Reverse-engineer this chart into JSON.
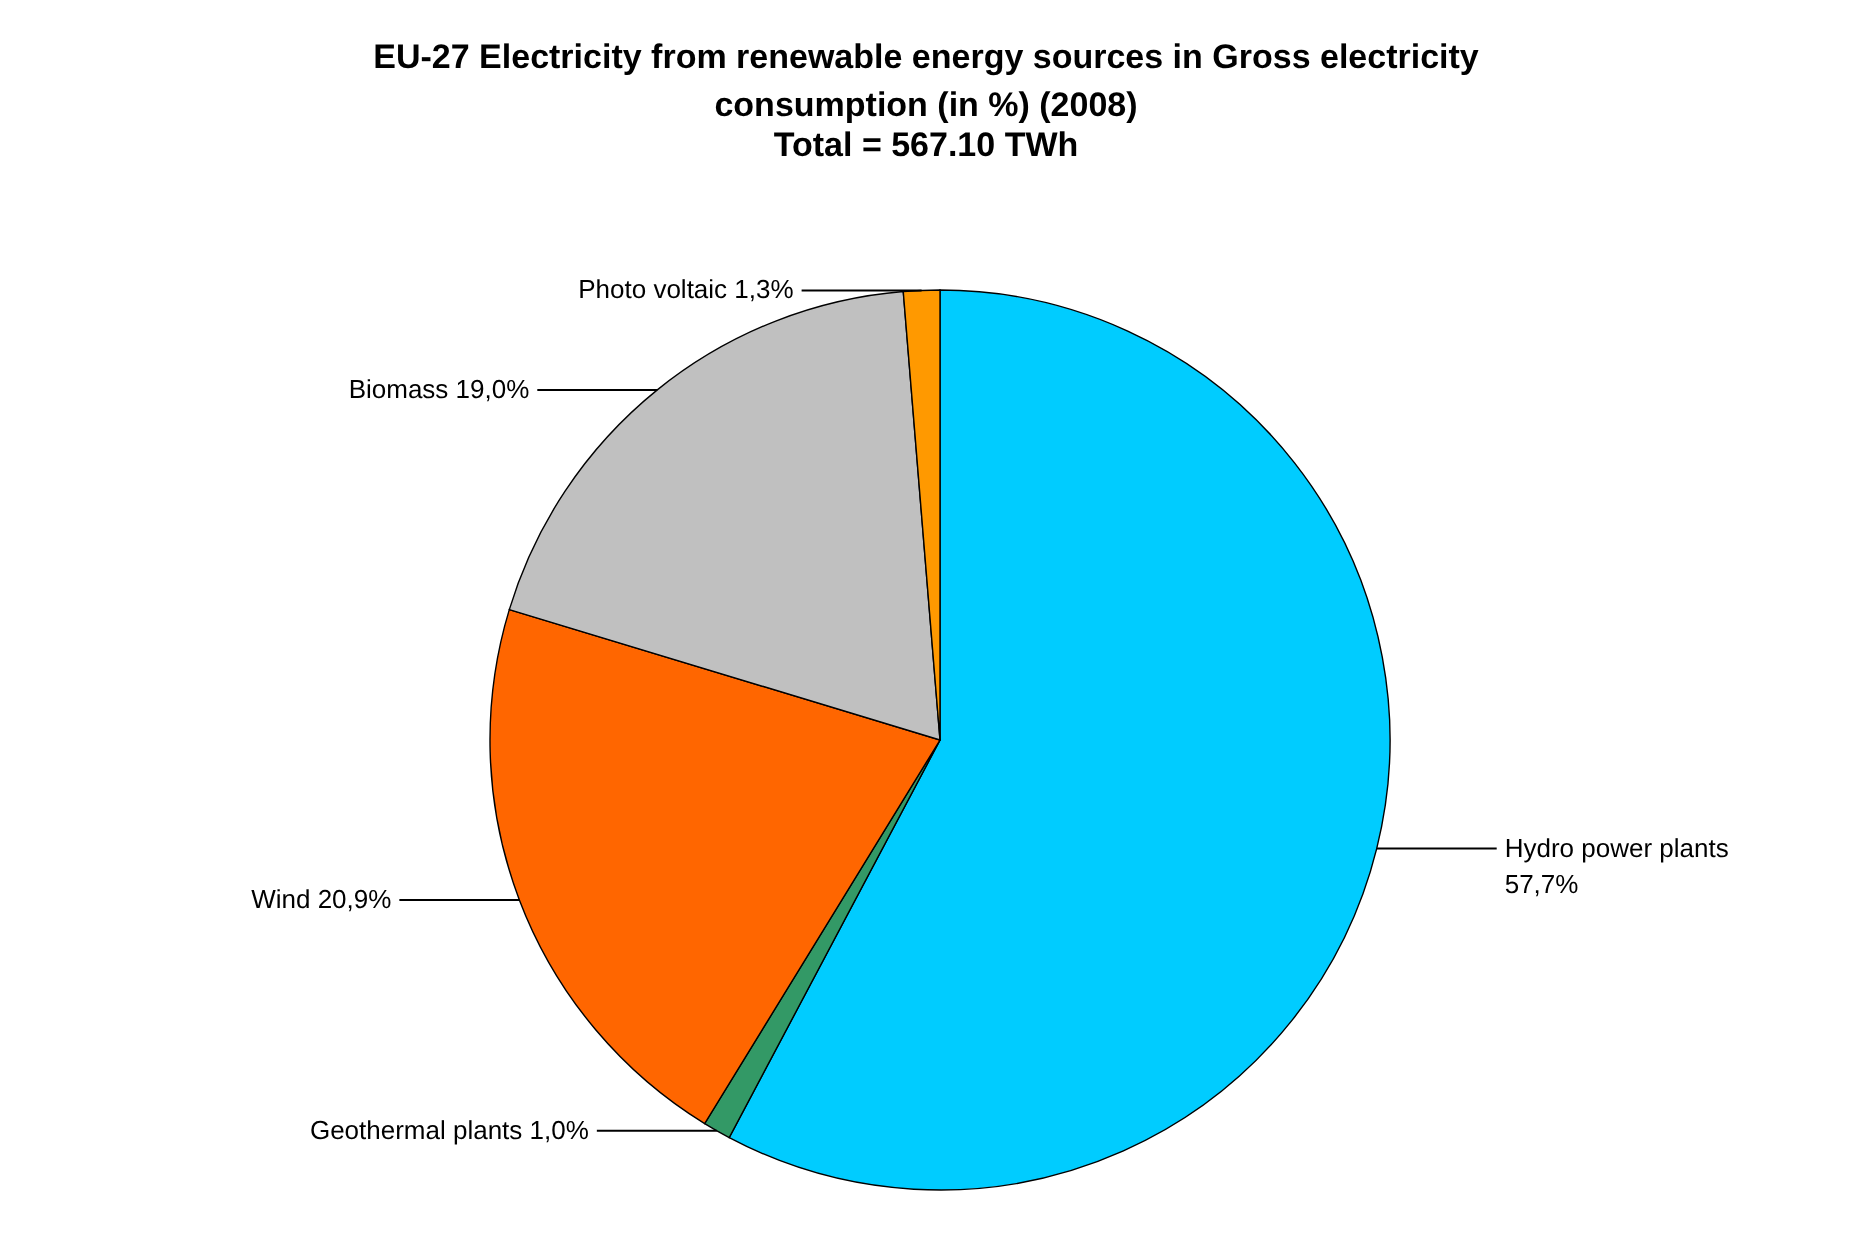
{
  "chart_data": {
    "type": "pie",
    "title": "EU-27 Electricity from renewable energy sources in Gross electricity consumption (in %) (2008)",
    "subtitle": "Total = 567.10 TWh",
    "categories": [
      "Hydro power plants",
      "Geothermal plants",
      "Wind",
      "Biomass",
      "Photo voltaic"
    ],
    "values": [
      57.7,
      1.0,
      20.9,
      19.0,
      1.3
    ],
    "value_labels": [
      "57,7%",
      "1,0%",
      "20,9%",
      "19,0%",
      "1,3%"
    ],
    "colors": [
      "#00ccff",
      "#339966",
      "#ff6600",
      "#c0c0c0",
      "#ff9900"
    ]
  }
}
